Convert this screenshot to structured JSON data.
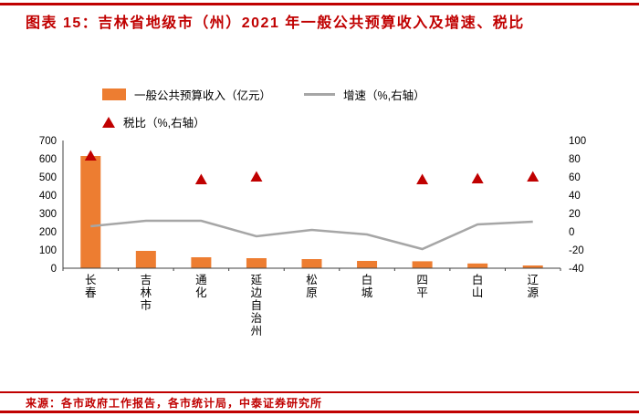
{
  "header": {
    "title": "图表 15：吉林省地级市（州）2021 年一般公共预算收入及增速、税比"
  },
  "legend": {
    "bar": "一般公共预算收入（亿元）",
    "line": "增速（%,右轴）",
    "triangle": "税比（%,右轴）"
  },
  "footer": {
    "source": "来源：各市政府工作报告，各市统计局，中泰证券研究所"
  },
  "colors": {
    "accent_red": "#C00000",
    "bar_orange": "#ED7D31",
    "line_gray": "#A6A6A6",
    "axis": "#404040",
    "text": "#000000"
  },
  "chart_data": {
    "type": "bar",
    "title": "吉林省地级市（州）2021年一般公共预算收入及增速、税比",
    "categories": [
      "长春",
      "吉林市",
      "通化",
      "延边自治州",
      "松原",
      "白城",
      "四平",
      "白山",
      "辽源"
    ],
    "series": [
      {
        "name": "一般公共预算收入（亿元）",
        "type": "bar",
        "axis": "left",
        "values": [
          615,
          95,
          60,
          55,
          50,
          40,
          38,
          26,
          15
        ]
      },
      {
        "name": "增速（%,右轴）",
        "type": "line",
        "axis": "right",
        "values": [
          6,
          12,
          12,
          -5,
          2,
          -3,
          -19,
          8,
          11
        ]
      },
      {
        "name": "税比（%,右轴）",
        "type": "scatter",
        "marker": "triangle",
        "axis": "right",
        "values": [
          83,
          null,
          57,
          60,
          null,
          null,
          57,
          58,
          60
        ]
      }
    ],
    "left_axis": {
      "min": 0,
      "max": 700,
      "ticks": [
        0,
        100,
        200,
        300,
        400,
        500,
        600,
        700
      ]
    },
    "right_axis": {
      "min": -40,
      "max": 100,
      "ticks": [
        -40,
        -20,
        0,
        20,
        40,
        60,
        80,
        100
      ]
    },
    "grid": false,
    "legend_position": "top"
  }
}
